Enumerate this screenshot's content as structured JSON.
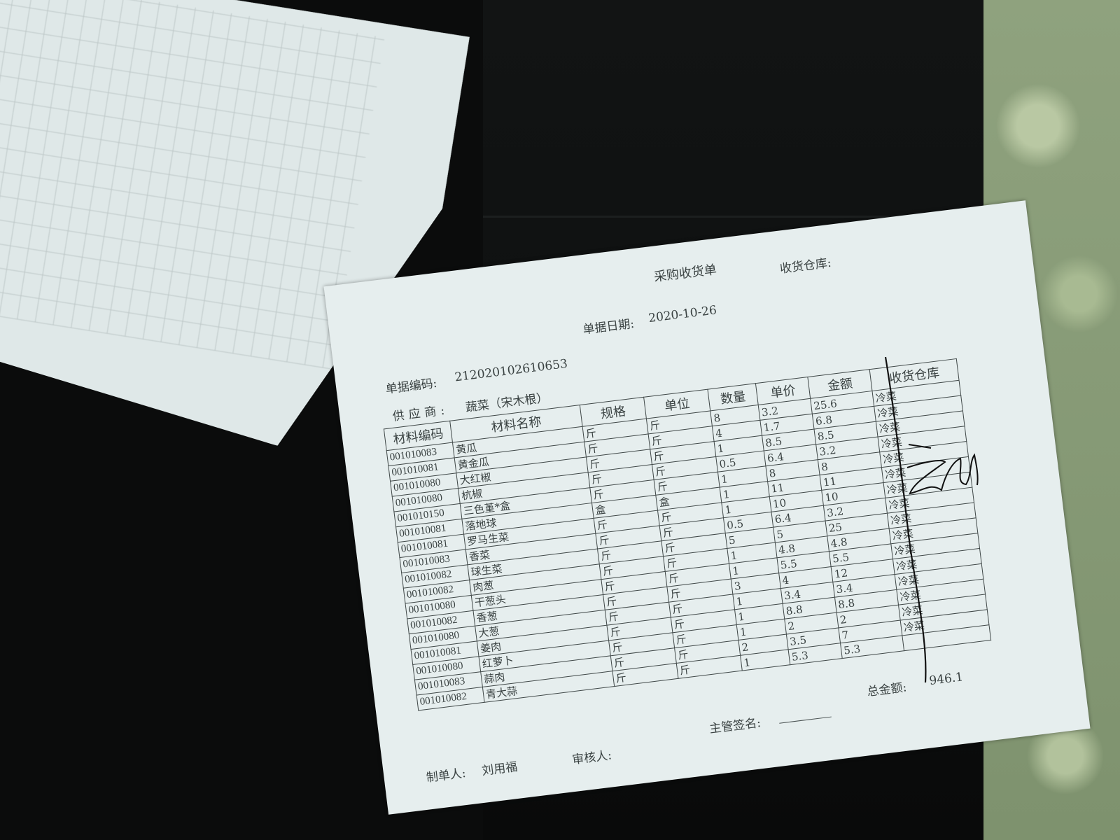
{
  "receipt": {
    "title": "采购收货单",
    "warehouse_label": "收货仓库:",
    "date_label": "单据日期:",
    "date_value": "2020-10-26",
    "doc_code_label": "单据编码:",
    "doc_code_value": "212020102610653",
    "supplier_label": "供应商:",
    "supplier_value": "蔬菜（宋木根）",
    "columns": [
      "材料编码",
      "材料名称",
      "规格",
      "单位",
      "数量",
      "单价",
      "金额",
      "收货仓库"
    ],
    "rows": [
      [
        "001010083",
        "黄瓜",
        "斤",
        "斤",
        "8",
        "3.2",
        "25.6",
        "冷菜"
      ],
      [
        "001010081",
        "黄金瓜",
        "斤",
        "斤",
        "4",
        "1.7",
        "6.8",
        "冷菜"
      ],
      [
        "001010080",
        "大红椒",
        "斤",
        "斤",
        "1",
        "8.5",
        "8.5",
        "冷菜"
      ],
      [
        "001010080",
        "杭椒",
        "斤",
        "斤",
        "0.5",
        "6.4",
        "3.2",
        "冷菜"
      ],
      [
        "001010150",
        "三色堇*盒",
        "斤",
        "斤",
        "1",
        "8",
        "8",
        "冷菜"
      ],
      [
        "001010081",
        "落地球",
        "盒",
        "盒",
        "1",
        "11",
        "11",
        "冷菜"
      ],
      [
        "001010081",
        "罗马生菜",
        "斤",
        "斤",
        "1",
        "10",
        "10",
        "冷菜"
      ],
      [
        "001010083",
        "香菜",
        "斤",
        "斤",
        "0.5",
        "6.4",
        "3.2",
        "冷菜"
      ],
      [
        "001010082",
        "球生菜",
        "斤",
        "斤",
        "5",
        "5",
        "25",
        "冷菜"
      ],
      [
        "001010082",
        "肉葱",
        "斤",
        "斤",
        "1",
        "4.8",
        "4.8",
        "冷菜"
      ],
      [
        "001010080",
        "干葱头",
        "斤",
        "斤",
        "1",
        "5.5",
        "5.5",
        "冷菜"
      ],
      [
        "001010082",
        "香葱",
        "斤",
        "斤",
        "3",
        "4",
        "12",
        "冷菜"
      ],
      [
        "001010080",
        "大葱",
        "斤",
        "斤",
        "1",
        "3.4",
        "3.4",
        "冷菜"
      ],
      [
        "001010081",
        "姜肉",
        "斤",
        "斤",
        "1",
        "8.8",
        "8.8",
        "冷菜"
      ],
      [
        "001010080",
        "红萝卜",
        "斤",
        "斤",
        "1",
        "2",
        "2",
        "冷菜"
      ],
      [
        "001010083",
        "蒜肉",
        "斤",
        "斤",
        "2",
        "3.5",
        "7",
        "冷菜"
      ],
      [
        "001010082",
        "青大蒜",
        "斤",
        "斤",
        "1",
        "5.3",
        "5.3",
        ""
      ]
    ],
    "total_label": "总金额:",
    "total_value": "946.1",
    "manager_sign_label": "主管签名:",
    "maker_label": "制单人:",
    "maker_value": "刘用福",
    "auditor_label": "审核人:"
  },
  "colors": {
    "paper": "#e6eeee",
    "ink": "#3a4242",
    "background": "#0b0c0c",
    "fabric": "#8fa27e"
  }
}
